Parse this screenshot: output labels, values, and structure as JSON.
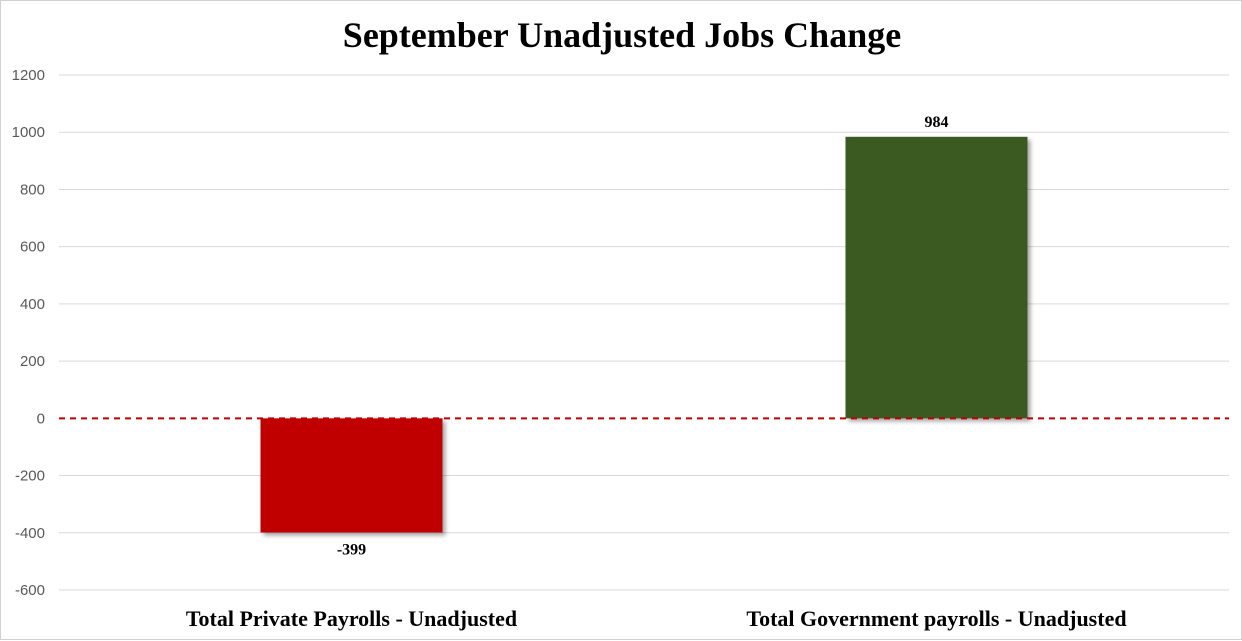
{
  "chart_data": {
    "type": "bar",
    "title": "September Unadjusted Jobs Change",
    "categories": [
      "Total Private Payrolls - Unadjusted",
      "Total Government payrolls - Unadjusted"
    ],
    "values": [
      -399,
      984
    ],
    "data_labels": [
      "-399",
      "984"
    ],
    "bar_colors": [
      "#c00000",
      "#3a5a24"
    ],
    "ylim": [
      -600,
      1200
    ],
    "yticks": [
      1200,
      1000,
      800,
      600,
      400,
      200,
      0,
      -200,
      -400,
      -600
    ],
    "ytick_labels": [
      "1200",
      "1000",
      "800",
      "600",
      "400",
      "200",
      "0",
      "-200",
      "-400",
      "-600"
    ],
    "grid": true,
    "zero_line": {
      "style": "dashed",
      "color": "#c00000"
    },
    "legend": "none"
  }
}
